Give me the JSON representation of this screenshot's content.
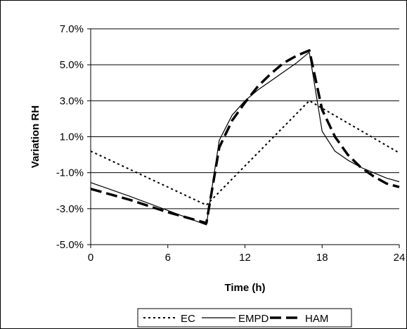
{
  "chart_data": {
    "type": "line",
    "title": "",
    "xlabel": "Time (h)",
    "ylabel": "Variation RH",
    "xlim": [
      0,
      24
    ],
    "ylim": [
      -5.0,
      7.0
    ],
    "x_ticks": [
      0,
      6,
      12,
      18,
      24
    ],
    "x_tick_labels": [
      "0",
      "6",
      "12",
      "18",
      "24"
    ],
    "y_ticks": [
      7.0,
      5.0,
      3.0,
      1.0,
      -1.0,
      -3.0,
      -5.0
    ],
    "y_tick_labels": [
      "7.0%",
      "5.0%",
      "3.0%",
      "1.0%",
      "-1.0%",
      "-3.0%",
      "-5.0%"
    ],
    "grid": "horizontal",
    "legend_position": "bottom",
    "series": [
      {
        "name": "EC",
        "style": "dotted",
        "color": "#000000",
        "points": [
          [
            0,
            0.2
          ],
          [
            9,
            -2.8
          ],
          [
            17,
            3.0
          ],
          [
            24,
            0.1
          ]
        ]
      },
      {
        "name": "EMPD",
        "style": "solid-thin",
        "color": "#000000",
        "points": [
          [
            0,
            -1.55
          ],
          [
            3,
            -2.3
          ],
          [
            6,
            -3.1
          ],
          [
            9,
            -3.9
          ],
          [
            10,
            0.8
          ],
          [
            11,
            2.2
          ],
          [
            12,
            3.0
          ],
          [
            13,
            3.6
          ],
          [
            14,
            4.1
          ],
          [
            15,
            4.6
          ],
          [
            16,
            5.1
          ],
          [
            17,
            5.7
          ],
          [
            18,
            1.3
          ],
          [
            19,
            0.2
          ],
          [
            20,
            -0.3
          ],
          [
            21,
            -0.7
          ],
          [
            22,
            -1.0
          ],
          [
            23,
            -1.3
          ],
          [
            24,
            -1.5
          ]
        ]
      },
      {
        "name": "HAM",
        "style": "dashed-thick",
        "color": "#000000",
        "points": [
          [
            0,
            -1.9
          ],
          [
            3,
            -2.5
          ],
          [
            6,
            -3.2
          ],
          [
            9,
            -3.8
          ],
          [
            10,
            0.4
          ],
          [
            11,
            1.9
          ],
          [
            12,
            2.9
          ],
          [
            13,
            3.8
          ],
          [
            14,
            4.5
          ],
          [
            15,
            5.1
          ],
          [
            16,
            5.5
          ],
          [
            17,
            5.8
          ],
          [
            18,
            2.5
          ],
          [
            19,
            1.0
          ],
          [
            20,
            0.0
          ],
          [
            21,
            -0.7
          ],
          [
            22,
            -1.2
          ],
          [
            23,
            -1.6
          ],
          [
            24,
            -1.8
          ]
        ]
      }
    ]
  }
}
